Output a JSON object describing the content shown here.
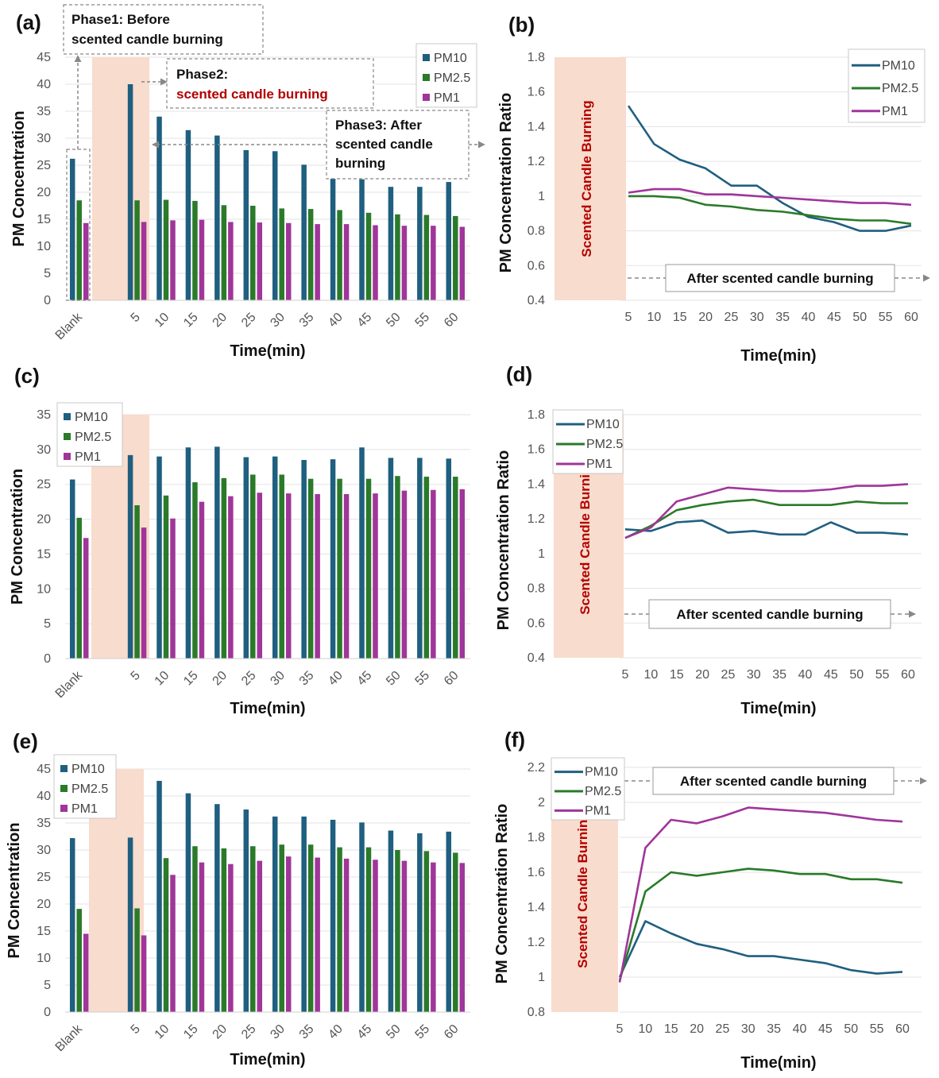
{
  "colors": {
    "pm10": "#1f5f7f",
    "pm25": "#2a7a2a",
    "pm1": "#a0359a",
    "band": "#f8dccd",
    "red_text": "#b30000"
  },
  "common": {
    "xlabel": "Time(min)",
    "bar_ylabel": "PM Concentration",
    "line_ylabel": "PM Concentration Ratio",
    "band_label": "Scented Candle Burning",
    "after_label": "After scented candle burning",
    "legend": [
      "PM10",
      "PM2.5",
      "PM1"
    ],
    "bar_categories": [
      "Blank",
      "5",
      "10",
      "15",
      "20",
      "25",
      "30",
      "35",
      "40",
      "45",
      "50",
      "55",
      "60"
    ],
    "line_x": [
      5,
      10,
      15,
      20,
      25,
      30,
      35,
      40,
      45,
      50,
      55,
      60
    ]
  },
  "annotations_a": {
    "phase1_line1": "Phase1: Before",
    "phase1_line2": "scented candle burning",
    "phase2_line1": "Phase2:",
    "phase2_line2": "scented candle burning",
    "phase3_line1": "Phase3:  After",
    "phase3_line2": "scented candle",
    "phase3_line3": "burning"
  },
  "chart_data": [
    {
      "id": "a",
      "label": "(a)",
      "type": "bar",
      "ylim": [
        0,
        45
      ],
      "yticks": [
        0,
        5,
        10,
        15,
        20,
        25,
        30,
        35,
        40,
        45
      ],
      "series": [
        {
          "name": "PM10",
          "values": [
            26.2,
            40,
            34,
            31.5,
            30.5,
            27.8,
            27.6,
            25.1,
            23,
            22.4,
            21,
            21,
            21.9
          ]
        },
        {
          "name": "PM2.5",
          "values": [
            18.5,
            18.5,
            18.6,
            18.4,
            17.6,
            17.5,
            17,
            16.9,
            16.7,
            16.2,
            15.9,
            15.8,
            15.6
          ]
        },
        {
          "name": "PM1",
          "values": [
            14.3,
            14.5,
            14.8,
            14.9,
            14.5,
            14.4,
            14.3,
            14.1,
            14.1,
            13.9,
            13.8,
            13.8,
            13.6
          ]
        }
      ]
    },
    {
      "id": "b",
      "label": "(b)",
      "type": "line",
      "ylim": [
        0.4,
        1.8
      ],
      "yticks": [
        "0.4",
        "0.6",
        "0.8",
        "1",
        "1.2",
        "1.4",
        "1.6",
        "1.8"
      ],
      "series": [
        {
          "name": "PM10",
          "values": [
            1.52,
            1.3,
            1.21,
            1.16,
            1.06,
            1.06,
            0.96,
            0.88,
            0.85,
            0.8,
            0.8,
            0.83
          ]
        },
        {
          "name": "PM2.5",
          "values": [
            1.0,
            1.0,
            0.99,
            0.95,
            0.94,
            0.92,
            0.91,
            0.89,
            0.87,
            0.86,
            0.86,
            0.84
          ]
        },
        {
          "name": "PM1",
          "values": [
            1.02,
            1.04,
            1.04,
            1.01,
            1.01,
            1.0,
            0.99,
            0.98,
            0.97,
            0.96,
            0.96,
            0.95
          ]
        }
      ]
    },
    {
      "id": "c",
      "label": "(c)",
      "type": "bar",
      "ylim": [
        0,
        35
      ],
      "yticks": [
        0,
        5,
        10,
        15,
        20,
        25,
        30,
        35
      ],
      "series": [
        {
          "name": "PM10",
          "values": [
            25.7,
            29.2,
            29,
            30.3,
            30.4,
            28.9,
            29,
            28.5,
            28.6,
            30.3,
            28.8,
            28.8,
            28.7
          ]
        },
        {
          "name": "PM2.5",
          "values": [
            20.2,
            22,
            23.4,
            25.3,
            25.9,
            26.4,
            26.4,
            25.8,
            25.8,
            25.8,
            26.2,
            26.1,
            26.1
          ]
        },
        {
          "name": "PM1",
          "values": [
            17.3,
            18.8,
            20.1,
            22.5,
            23.3,
            23.8,
            23.7,
            23.6,
            23.6,
            23.7,
            24.1,
            24.2,
            24.3
          ]
        }
      ]
    },
    {
      "id": "d",
      "label": "(d)",
      "type": "line",
      "ylim": [
        0.4,
        1.8
      ],
      "yticks": [
        "0.4",
        "0.6",
        "0.8",
        "1",
        "1.2",
        "1.4",
        "1.6",
        "1.8"
      ],
      "series": [
        {
          "name": "PM10",
          "values": [
            1.14,
            1.13,
            1.18,
            1.19,
            1.12,
            1.13,
            1.11,
            1.11,
            1.18,
            1.12,
            1.12,
            1.11
          ]
        },
        {
          "name": "PM2.5",
          "values": [
            1.09,
            1.16,
            1.25,
            1.28,
            1.3,
            1.31,
            1.28,
            1.28,
            1.28,
            1.3,
            1.29,
            1.29
          ]
        },
        {
          "name": "PM1",
          "values": [
            1.09,
            1.15,
            1.3,
            1.34,
            1.38,
            1.37,
            1.36,
            1.36,
            1.37,
            1.39,
            1.39,
            1.4
          ]
        }
      ]
    },
    {
      "id": "e",
      "label": "(e)",
      "type": "bar",
      "ylim": [
        0,
        45
      ],
      "yticks": [
        0,
        5,
        10,
        15,
        20,
        25,
        30,
        35,
        40,
        45
      ],
      "series": [
        {
          "name": "PM10",
          "values": [
            32.2,
            32.3,
            42.8,
            40.5,
            38.5,
            37.5,
            36.2,
            36.2,
            35.6,
            35.1,
            33.6,
            33.1,
            33.4
          ]
        },
        {
          "name": "PM2.5",
          "values": [
            19.1,
            19.2,
            28.5,
            30.7,
            30.3,
            30.7,
            31,
            31,
            30.5,
            30.5,
            30,
            29.8,
            29.5
          ]
        },
        {
          "name": "PM1",
          "values": [
            14.5,
            14.2,
            25.4,
            27.7,
            27.4,
            28,
            28.8,
            28.6,
            28.4,
            28.2,
            28,
            27.7,
            27.6
          ]
        }
      ]
    },
    {
      "id": "f",
      "label": "(f)",
      "type": "line",
      "ylim": [
        0.8,
        2.2
      ],
      "yticks": [
        "0.8",
        "1",
        "1.2",
        "1.4",
        "1.6",
        "1.8",
        "2",
        "2.2"
      ],
      "series": [
        {
          "name": "PM10",
          "values": [
            1.0,
            1.32,
            1.25,
            1.19,
            1.16,
            1.12,
            1.12,
            1.1,
            1.08,
            1.04,
            1.02,
            1.03
          ]
        },
        {
          "name": "PM2.5",
          "values": [
            0.98,
            1.49,
            1.6,
            1.58,
            1.6,
            1.62,
            1.61,
            1.59,
            1.59,
            1.56,
            1.56,
            1.54
          ]
        },
        {
          "name": "PM1",
          "values": [
            0.97,
            1.74,
            1.9,
            1.88,
            1.92,
            1.97,
            1.96,
            1.95,
            1.94,
            1.92,
            1.9,
            1.89
          ]
        }
      ]
    }
  ]
}
